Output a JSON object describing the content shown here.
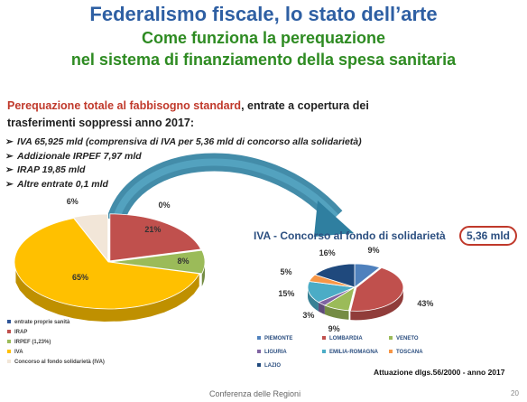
{
  "slide": {
    "title": "Federalismo fiscale, lo stato dell’arte",
    "subtitle_line1": "Come funziona la perequazione",
    "subtitle_line2": "nel sistema di finanziamento della spesa sanitaria",
    "heading_red": "Perequazione totale al fabbisogno standard",
    "heading_rest": ", entrate a copertura dei",
    "heading_line2": "trasferimenti soppressi anno 2017:",
    "bullet_glyph": "➢",
    "bullets": [
      "IVA 65,925 mld (comprensiva di IVA per 5,36 mld di concorso alla solidarietà)",
      "Addizionale IRPEF 7,97 mld",
      "IRAP 19,85 mld",
      "Altre entrate 0,1 mld"
    ],
    "footer": "Conferenza delle Regioni",
    "page_number": "20",
    "footnote": "Attuazione dlgs.56/2000 - anno 2017",
    "colors": {
      "title_blue": "#2e5fa3",
      "title_green": "#2e8b22",
      "accent_red": "#c0392b",
      "arrow_teal": "#2f7fa0"
    }
  },
  "chart_data": [
    {
      "type": "pie",
      "slices": [
        {
          "name": "entrate proprie sanità",
          "value": 0,
          "label": "0%",
          "color": "#2f5597"
        },
        {
          "name": "IRAP",
          "value": 21,
          "label": "21%",
          "color": "#c0504d"
        },
        {
          "name": "IRPEF (1,23%)",
          "value": 8,
          "label": "8%",
          "color": "#9bbb59"
        },
        {
          "name": "IVA",
          "value": 65,
          "label": "65%",
          "color": "#ffc000"
        },
        {
          "name": "Concorso al fondo solidarietà (IVA)",
          "value": 6,
          "label": "6%",
          "color": "#f2e6d8"
        }
      ],
      "legend": [
        "entrate proprie sanità",
        "IRAP",
        "IRPEF (1,23%)",
        "IVA",
        "Concorso al fondo solidarietà (IVA)"
      ],
      "legend_placement": "bottom-left"
    },
    {
      "type": "pie",
      "title": "IVA - Concorso al fondo di solidarietà",
      "badge": "5,36 mld",
      "slices": [
        {
          "name": "PIEMONTE",
          "value": 9,
          "label": "9%",
          "color": "#4f81bd"
        },
        {
          "name": "LOMBARDIA",
          "value": 43,
          "label": "43%",
          "color": "#c0504d"
        },
        {
          "name": "VENETO",
          "value": 9,
          "label": "9%",
          "color": "#9bbb59"
        },
        {
          "name": "LIGURIA",
          "value": 3,
          "label": "3%",
          "color": "#8064a2"
        },
        {
          "name": "EMILIA-ROMAGNA",
          "value": 15,
          "label": "15%",
          "color": "#4bacc6"
        },
        {
          "name": "TOSCANA",
          "value": 5,
          "label": "5%",
          "color": "#f79646"
        },
        {
          "name": "LAZIO",
          "value": 16,
          "label": "16%",
          "color": "#1f497d"
        }
      ],
      "legend_placement": "bottom"
    }
  ]
}
